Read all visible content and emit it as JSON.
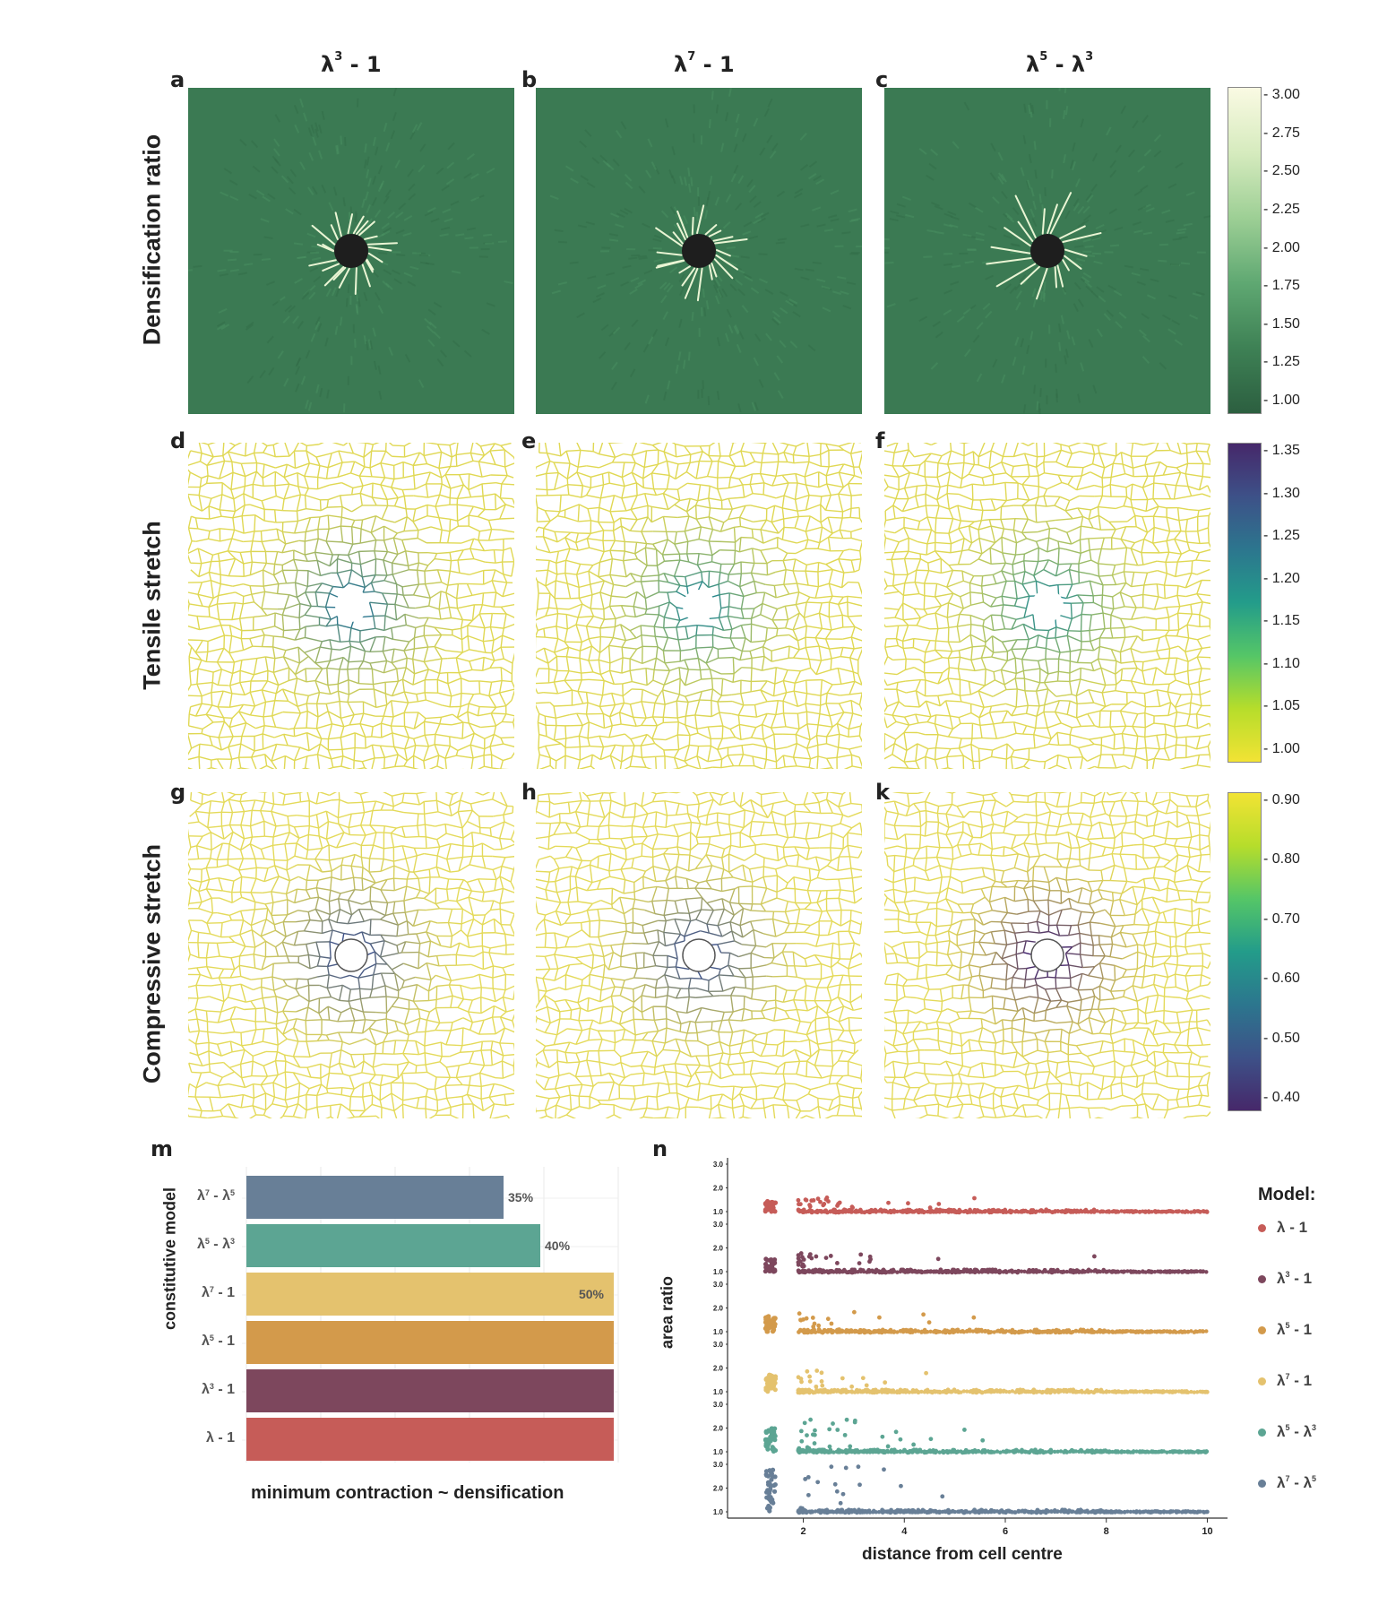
{
  "columns": [
    {
      "base": "λ",
      "sup1": "3",
      "rest": " - 1",
      "sup2": ""
    },
    {
      "base": "λ",
      "sup1": "7",
      "rest": " - 1",
      "sup2": ""
    },
    {
      "base": "λ",
      "sup1": "5",
      "rest": " - λ",
      "sup2": "3"
    }
  ],
  "panel_letters": [
    "a",
    "b",
    "c",
    "d",
    "e",
    "f",
    "g",
    "h",
    "k",
    "m",
    "n"
  ],
  "row_labels": [
    "Densification ratio",
    "Tensile stretch",
    "Compressive stretch"
  ],
  "colorbars": [
    {
      "name": "densification",
      "ticks": [
        "3.00",
        "2.75",
        "2.50",
        "2.25",
        "2.00",
        "1.75",
        "1.50",
        "1.25",
        "1.00"
      ],
      "colors": [
        "#fafae3",
        "#d6ebbe",
        "#9dcf95",
        "#5fa872",
        "#3e8155",
        "#2c5f40"
      ]
    },
    {
      "name": "tensile",
      "ticks": [
        "1.35",
        "1.30",
        "1.25",
        "1.20",
        "1.15",
        "1.10",
        "1.05",
        "1.00"
      ],
      "colors": [
        "#46286a",
        "#3d5188",
        "#2c768e",
        "#239c8a",
        "#55c667",
        "#b6dd2b",
        "#f2e334"
      ]
    },
    {
      "name": "compressive",
      "ticks": [
        "0.90",
        "0.80",
        "0.70",
        "0.60",
        "0.50",
        "0.40"
      ],
      "colors": [
        "#f2e334",
        "#b6dd2b",
        "#55c667",
        "#239c8a",
        "#2c768e",
        "#3d5188",
        "#46286a"
      ]
    }
  ],
  "map_colors": {
    "dense_bg": "#3b7a53",
    "tensile_line": "#e0d853",
    "compress_line": "#e4da5a",
    "inclusion": "#1e1e1e"
  },
  "bar_chart": {
    "ylabel": "constitutive model",
    "xlabel": "minimum contraction ~ densification",
    "bars": [
      {
        "base": "λ",
        "s1": "7",
        "mid": " - λ",
        "s2": "5",
        "value": 35,
        "label": "35%",
        "color": "#687f97"
      },
      {
        "base": "λ",
        "s1": "5",
        "mid": " - λ",
        "s2": "3",
        "value": 40,
        "label": "40%",
        "color": "#5ca593"
      },
      {
        "base": "λ",
        "s1": "7",
        "mid": " - 1",
        "s2": "",
        "value": 50,
        "label": "50%",
        "color": "#e4c26e"
      },
      {
        "base": "λ",
        "s1": "5",
        "mid": " - 1",
        "s2": "",
        "value": 50,
        "label": "",
        "color": "#d39a4b"
      },
      {
        "base": "λ",
        "s1": "3",
        "mid": " - 1",
        "s2": "",
        "value": 50,
        "label": "",
        "color": "#7d475d"
      },
      {
        "base": "λ",
        "s1": "",
        "mid": " - 1",
        "s2": "",
        "value": 50,
        "label": "",
        "color": "#c65c58"
      }
    ]
  },
  "chart_data": {
    "type": "scatter",
    "xlabel": "distance from cell centre",
    "ylabel": "area ratio",
    "xlim": [
      0.5,
      10.4
    ],
    "ylim": [
      0.9,
      3.0
    ],
    "xticks": [
      "2",
      "4",
      "6",
      "8",
      "10"
    ],
    "yticks": [
      "1.0",
      "2.0",
      "3.0"
    ],
    "legend_title": "Model:",
    "series": [
      {
        "name": "λ - 1",
        "base": "λ",
        "s1": "",
        "mid": " - 1",
        "s2": "",
        "color": "#c65c58",
        "spread": 0.35
      },
      {
        "name": "λ3 - 1",
        "base": "λ",
        "s1": "3",
        "mid": " - 1",
        "s2": "",
        "color": "#7d475d",
        "spread": 0.45
      },
      {
        "name": "λ5 - 1",
        "base": "λ",
        "s1": "5",
        "mid": " - 1",
        "s2": "",
        "color": "#d39a4b",
        "spread": 0.5
      },
      {
        "name": "λ7 - 1",
        "base": "λ",
        "s1": "7",
        "mid": " - 1",
        "s2": "",
        "color": "#e4c26e",
        "spread": 0.55
      },
      {
        "name": "λ5 - λ3",
        "base": "λ",
        "s1": "5",
        "mid": " - λ",
        "s2": "3",
        "color": "#5ca593",
        "spread": 0.8
      },
      {
        "name": "λ7 - λ5",
        "base": "λ",
        "s1": "7",
        "mid": " - λ",
        "s2": "5",
        "color": "#687f97",
        "spread": 1.4
      }
    ]
  }
}
